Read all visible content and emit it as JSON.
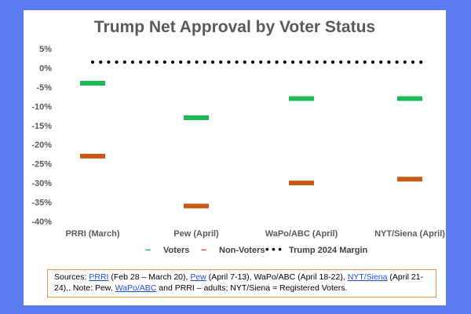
{
  "chart_data": {
    "type": "scatter",
    "title": "Trump Net Approval by Voter Status",
    "categories": [
      "PRRI (March)",
      "Pew (April)",
      "WaPo/ABC (April)",
      "NYT/Siena (April)"
    ],
    "series": [
      {
        "name": "Voters",
        "color": "#1db954",
        "marker": "dash",
        "values": [
          -4,
          -13,
          -8,
          -8
        ]
      },
      {
        "name": "Non-Voters",
        "color": "#c85a17",
        "marker": "dash",
        "values": [
          -23,
          -36,
          -30,
          -29
        ]
      },
      {
        "name": "Trump 2024 Margin",
        "color": "#000000",
        "marker": "dotted-line",
        "value": 1.5
      }
    ],
    "y_ticks": [
      "5%",
      "0%",
      "-5%",
      "-10%",
      "-15%",
      "-20%",
      "-25%",
      "-30%",
      "-35%",
      "-40%"
    ],
    "ylim": [
      -40,
      5
    ],
    "xlabel": "",
    "ylabel": "",
    "legend": {
      "position": "bottom",
      "voters_label": "Voters",
      "nonvoters_label": "Non-Voters",
      "margin_label": "Trump 2024 Margin",
      "voters_symbol": "–",
      "nonvoters_symbol": "–",
      "margin_symbol": "• • •"
    }
  },
  "sources": {
    "prefix": "Sources: ",
    "prri_link": "PRRI",
    "prri_text": " (Feb 28 – March 20), ",
    "pew_link": "Pew",
    "pew_text": " (April 7-13), WaPo/ABC (April 18-22), ",
    "nyt_link": "NYT/Siena",
    "nyt_text": " (April 21-24),. Note: Pew, ",
    "wapo_link": "WaPo/ABC",
    "tail_text": " and PRRI – adults; NYT/Siena = Registered Voters."
  }
}
